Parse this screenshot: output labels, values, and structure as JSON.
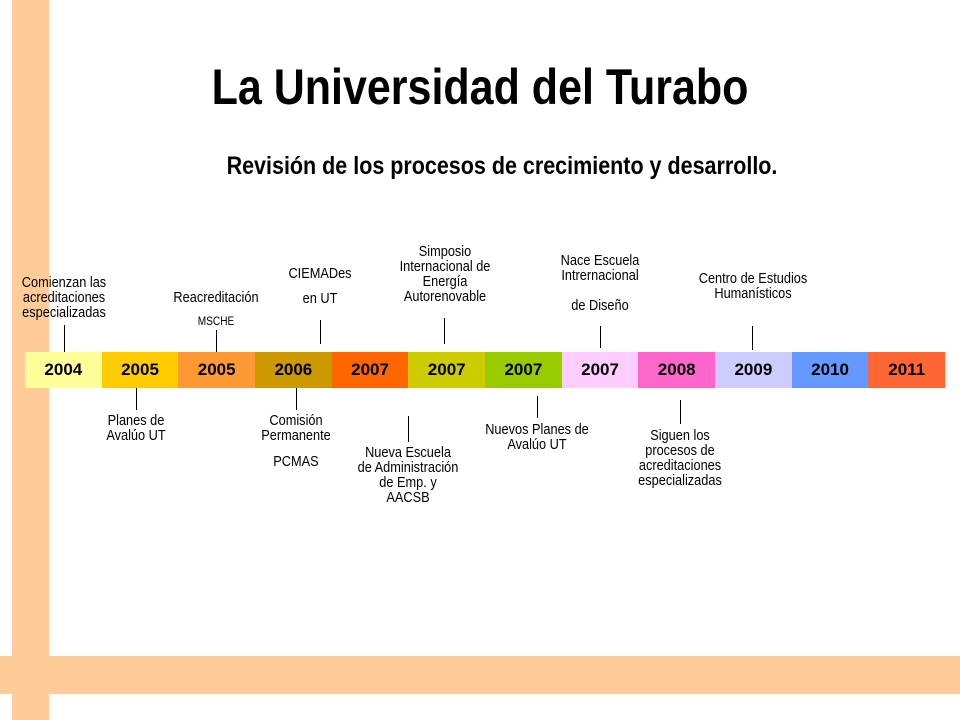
{
  "title": "La Universidad del Turabo",
  "subtitle": "Revisión de los procesos de crecimiento y desarrollo.",
  "timeline": [
    {
      "year": "2004",
      "color": "#ffff99"
    },
    {
      "year": "2005",
      "color": "#ffcc00"
    },
    {
      "year": "2005",
      "color": "#ff9933"
    },
    {
      "year": "2006",
      "color": "#cc9900"
    },
    {
      "year": "2007",
      "color": "#ff6600"
    },
    {
      "year": "2007",
      "color": "#cccc00"
    },
    {
      "year": "2007",
      "color": "#99cc00"
    },
    {
      "year": "2007",
      "color": "#ffccff"
    },
    {
      "year": "2008",
      "color": "#ff66cc"
    },
    {
      "year": "2009",
      "color": "#ccccff"
    },
    {
      "year": "2010",
      "color": "#6699ff"
    },
    {
      "year": "2011",
      "color": "#ff6633"
    }
  ],
  "events_above": [
    {
      "text": "Comienzan las acreditaciones especializadas"
    },
    {
      "text": "Reacreditación",
      "sub": "MSCHE"
    },
    {
      "text": "CIEMADes",
      "sub": "en UT"
    },
    {
      "text": "Simposio Internacional de Energía Autorenovable"
    },
    {
      "text": "Nace Escuela Intrernacional",
      "sub": "de Diseño"
    },
    {
      "text": "Centro de Estudios Humanísticos"
    }
  ],
  "events_below": [
    {
      "text": "Planes de Avalúo UT"
    },
    {
      "text": "Comisión Permanente",
      "sub": "PCMAS"
    },
    {
      "text": "Nueva Escuela de Administración de Emp. y AACSB"
    },
    {
      "text": "Nuevos Planes de Avalúo UT"
    },
    {
      "text": "Siguen los procesos de acreditaciones especializadas"
    }
  ]
}
